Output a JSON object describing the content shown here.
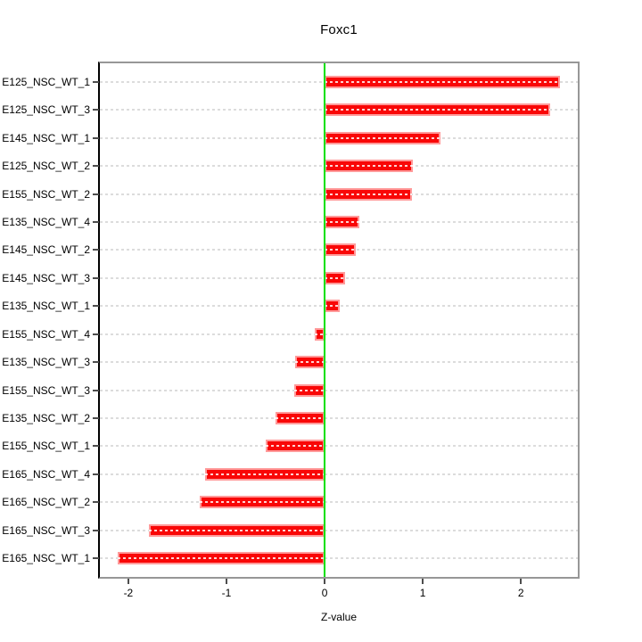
{
  "chart_data": {
    "type": "bar",
    "orientation": "horizontal",
    "title": "Foxc1",
    "xlabel": "Z-value",
    "categories": [
      "E125_NSC_WT_1",
      "E125_NSC_WT_3",
      "E145_NSC_WT_1",
      "E125_NSC_WT_2",
      "E155_NSC_WT_2",
      "E135_NSC_WT_4",
      "E145_NSC_WT_2",
      "E145_NSC_WT_3",
      "E135_NSC_WT_1",
      "E155_NSC_WT_4",
      "E135_NSC_WT_3",
      "E155_NSC_WT_3",
      "E135_NSC_WT_2",
      "E155_NSC_WT_1",
      "E165_NSC_WT_4",
      "E165_NSC_WT_2",
      "E165_NSC_WT_3",
      "E165_NSC_WT_1"
    ],
    "values": [
      2.4,
      2.3,
      1.18,
      0.9,
      0.89,
      0.35,
      0.32,
      0.21,
      0.15,
      -0.1,
      -0.3,
      -0.31,
      -0.5,
      -0.6,
      -1.22,
      -1.27,
      -1.79,
      -2.11
    ],
    "xticks": [
      -2,
      -1,
      0,
      1,
      2
    ],
    "xtick_labels": [
      "-2",
      "-1",
      "0",
      "1",
      "2"
    ],
    "xlim": [
      -2.29,
      2.58
    ],
    "zero_line_x": 0,
    "grid": true,
    "legend": "none",
    "colors": {
      "bar_fill": "#f90707",
      "bar_border": "#ff9a9a",
      "zero_line": "#00e000",
      "grid_line": "#dcdcdc",
      "frame": "#979797",
      "text": "#000000"
    }
  }
}
